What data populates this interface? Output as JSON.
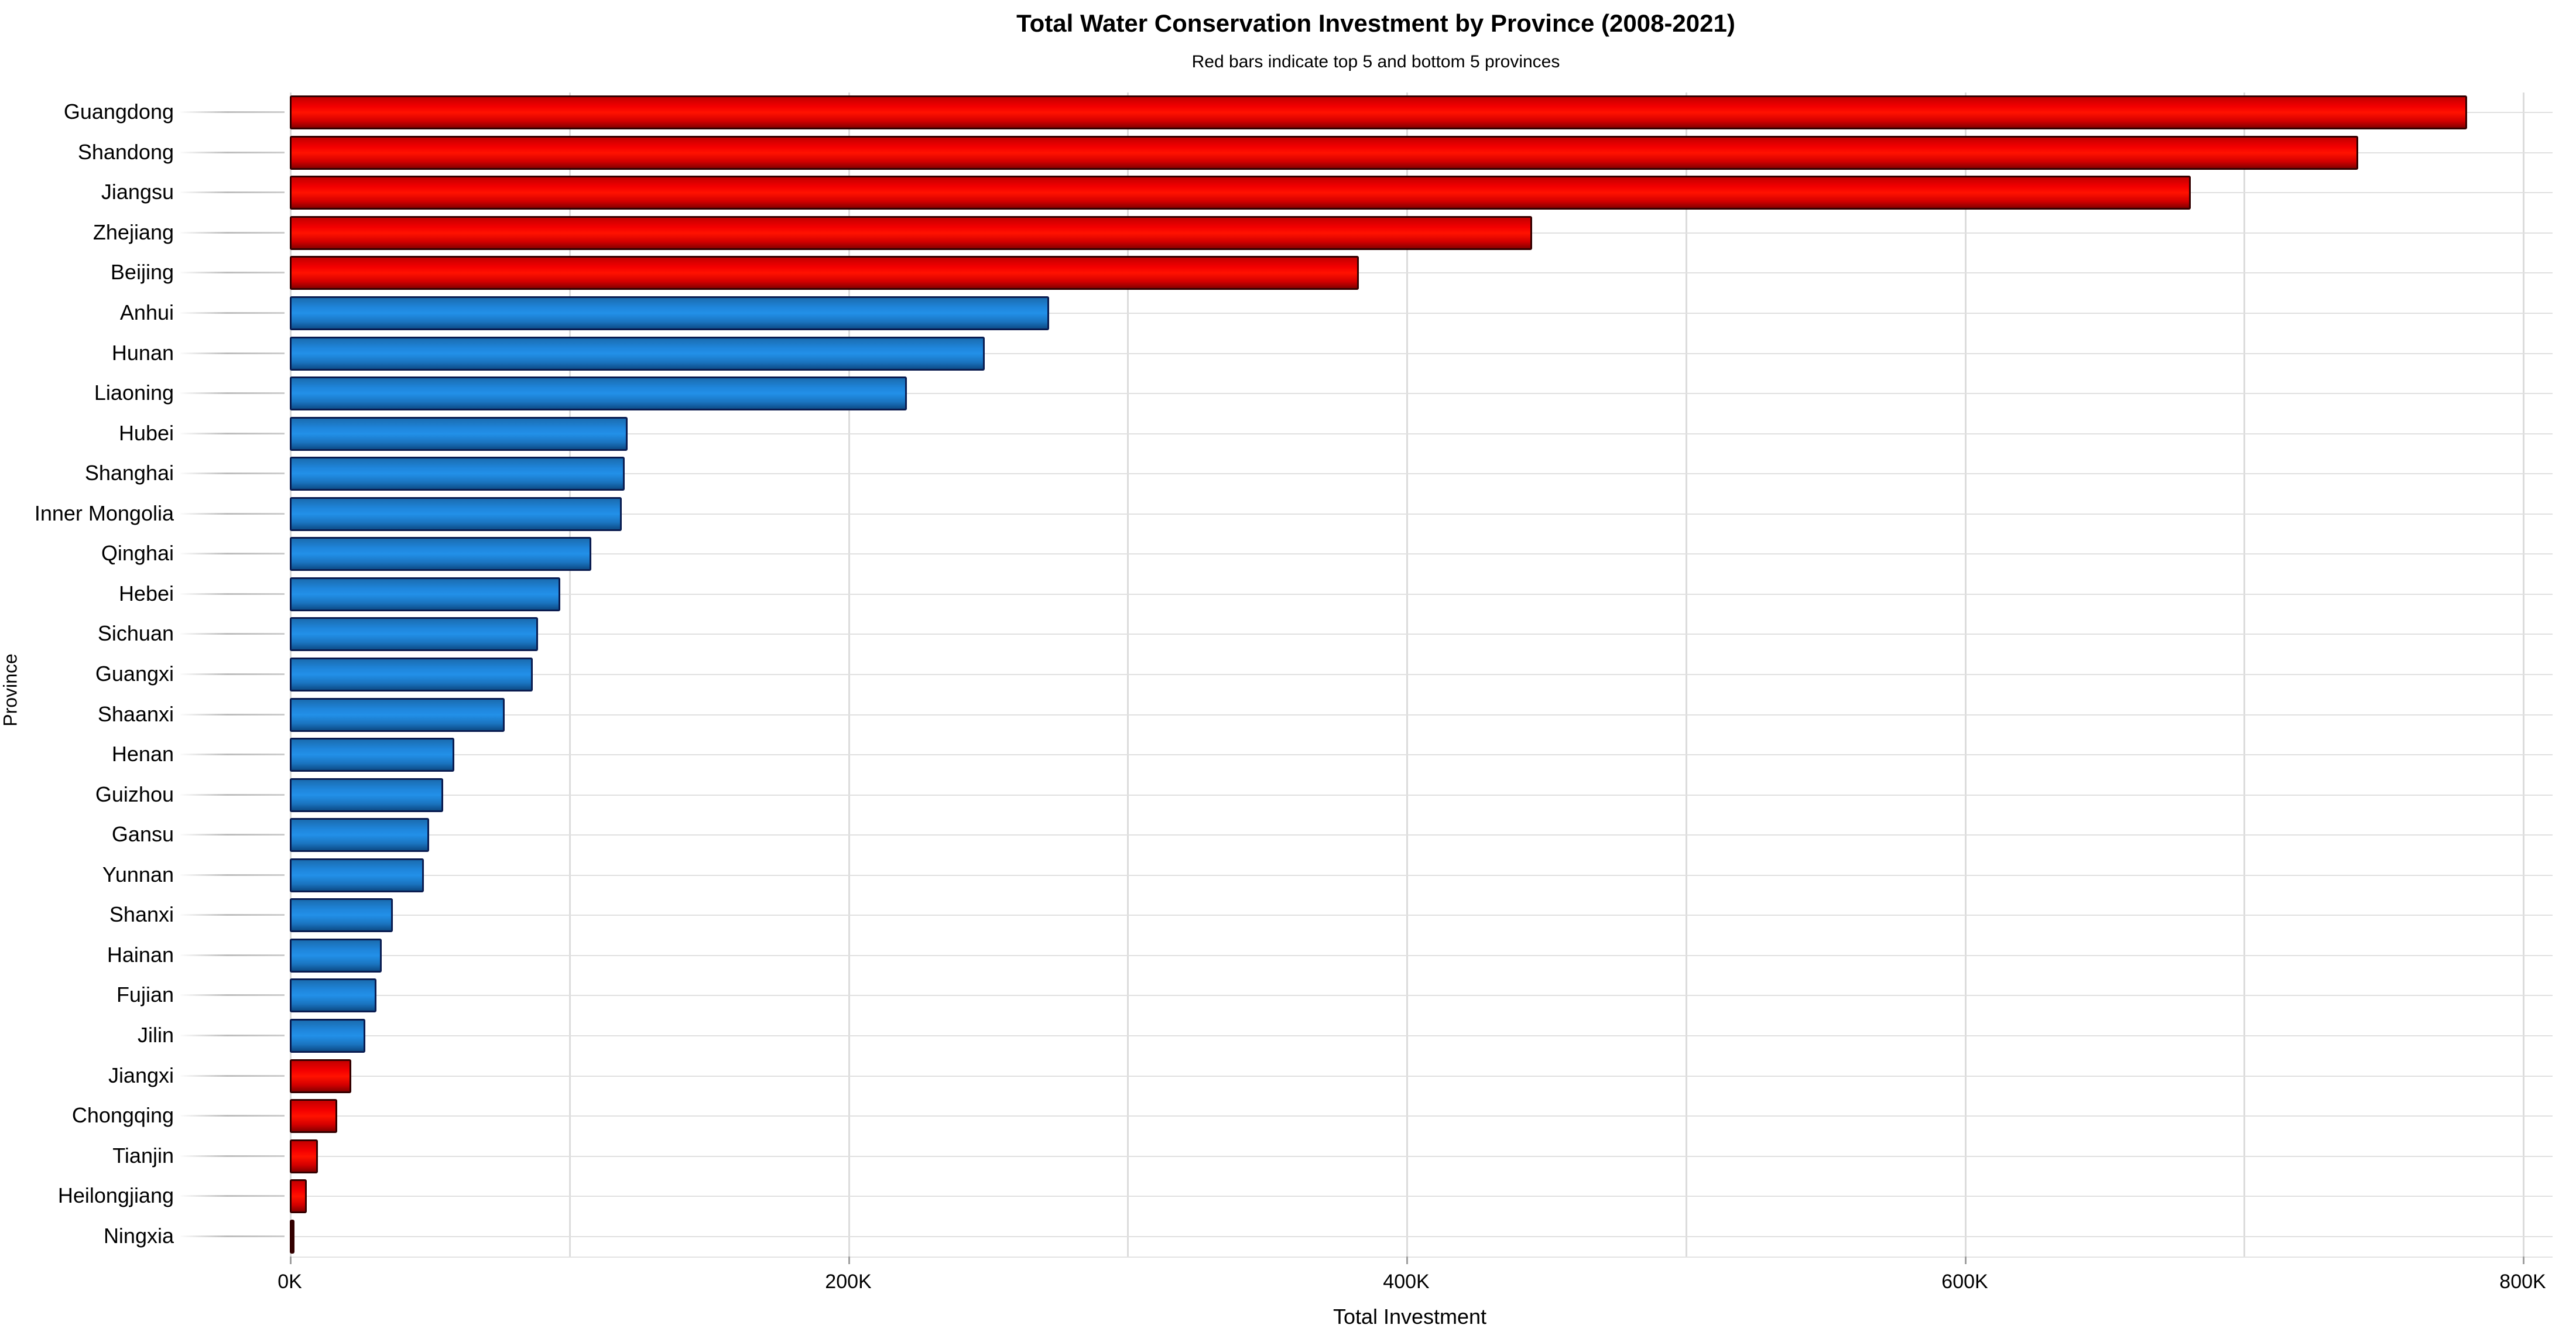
{
  "header": {
    "title": "Total Water Conservation Investment by Province (2008-2021)",
    "subtitle": "Red bars indicate top 5 and bottom 5 provinces"
  },
  "colors": {
    "highlight_red": "#e60000",
    "default_blue": "#1f86dc",
    "red_border": "#330000",
    "blue_border": "#0a1c50",
    "gridline": "#dcdcdc"
  },
  "chart_data": {
    "type": "bar",
    "orientation": "horizontal",
    "title": "Total Water Conservation Investment by Province (2008-2021)",
    "subtitle": "Red bars indicate top 5 and bottom 5 provinces",
    "xlabel": "Total Investment",
    "ylabel": "Province",
    "values_unit": "thousands (K)",
    "xlim": [
      0,
      810
    ],
    "grid": true,
    "categories": [
      "Guangdong",
      "Shandong",
      "Jiangsu",
      "Zhejiang",
      "Beijing",
      "Anhui",
      "Hunan",
      "Liaoning",
      "Hubei",
      "Shanghai",
      "Inner Mongolia",
      "Qinghai",
      "Hebei",
      "Sichuan",
      "Guangxi",
      "Shaanxi",
      "Henan",
      "Guizhou",
      "Gansu",
      "Yunnan",
      "Shanxi",
      "Hainan",
      "Fujian",
      "Jilin",
      "Jiangxi",
      "Chongqing",
      "Tianjin",
      "Heilongjiang",
      "Ningxia"
    ],
    "values": [
      780,
      741,
      681,
      445,
      383,
      272,
      249,
      221,
      121,
      120,
      119,
      108,
      97,
      89,
      87,
      77,
      59,
      55,
      50,
      48,
      37,
      33,
      31,
      27,
      22,
      17,
      10,
      6,
      0.4
    ],
    "bar_colors": [
      "red",
      "red",
      "red",
      "red",
      "red",
      "blue",
      "blue",
      "blue",
      "blue",
      "blue",
      "blue",
      "blue",
      "blue",
      "blue",
      "blue",
      "blue",
      "blue",
      "blue",
      "blue",
      "blue",
      "blue",
      "blue",
      "blue",
      "blue",
      "red",
      "red",
      "red",
      "red",
      "red"
    ],
    "x_tick_values": [
      0,
      200,
      400,
      600,
      800
    ],
    "x_tick_labels": [
      "0K",
      "200K",
      "400K",
      "600K",
      "800K"
    ],
    "x_minor_grid_values": [
      100,
      300,
      500,
      700
    ],
    "legend_position": "none"
  }
}
